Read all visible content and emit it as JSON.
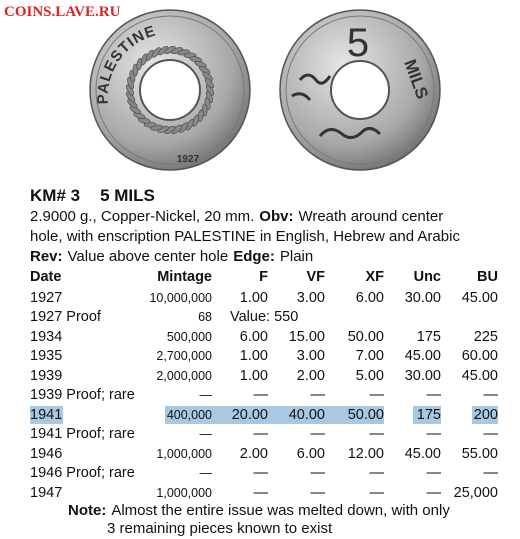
{
  "watermark": "COINS.LAVE.RU",
  "coins": {
    "obverse": {
      "legend": "PALESTINE",
      "date": "1927"
    },
    "reverse": {
      "value": "5",
      "unit": "MILS"
    }
  },
  "title": {
    "km": "KM# 3",
    "name": "5 MILS"
  },
  "description": [
    [
      {
        "text": "2.9000 g., Copper-Nickel, 20 mm.",
        "bold": false
      },
      {
        "text": "Obv:",
        "bold": true
      },
      {
        "text": "Wreath around center",
        "bold": false
      }
    ],
    [
      {
        "text": "hole, with enscription PALESTINE in English, Hebrew and Arabic",
        "bold": false
      }
    ],
    [
      {
        "text": "Rev:",
        "bold": true
      },
      {
        "text": "Value above center hole",
        "bold": false
      },
      {
        "text": "Edge:",
        "bold": true
      },
      {
        "text": "Plain",
        "bold": false
      }
    ]
  ],
  "table": {
    "columns": [
      "Date",
      "Mintage",
      "F",
      "VF",
      "XF",
      "Unc",
      "BU"
    ],
    "rows": [
      [
        "1927",
        "10,000,000",
        "1.00",
        "3.00",
        "6.00",
        "30.00",
        "45.00"
      ],
      [
        "1927 Proof",
        "68",
        "Value: 550"
      ],
      [
        "1934",
        "500,000",
        "6.00",
        "15.00",
        "50.00",
        "175",
        "225"
      ],
      [
        "1935",
        "2,700,000",
        "1.00",
        "3.00",
        "7.00",
        "45.00",
        "60.00"
      ],
      [
        "1939",
        "2,000,000",
        "1.00",
        "2.00",
        "5.00",
        "30.00",
        "45.00"
      ],
      [
        "1939 Proof; rare",
        "—",
        "—",
        "—",
        "—",
        "—",
        "—"
      ],
      [
        "1941",
        "400,000",
        "20.00",
        "40.00",
        "50.00",
        "175",
        "200"
      ],
      [
        "1941 Proof; rare",
        "—",
        "—",
        "—",
        "—",
        "—",
        "—"
      ],
      [
        "1946",
        "1,000,000",
        "2.00",
        "6.00",
        "12.00",
        "45.00",
        "55.00"
      ],
      [
        "1946 Proof; rare",
        "—",
        "—",
        "—",
        "—",
        "—",
        "—"
      ],
      [
        "1947",
        "1,000,000",
        "—",
        "—",
        "—",
        "—",
        "25,000"
      ]
    ],
    "highlight_row": 6
  },
  "note": {
    "label": "Note:",
    "lines": [
      "Almost the entire issue was melted down, with only",
      "3 remaining pieces known to exist"
    ]
  }
}
